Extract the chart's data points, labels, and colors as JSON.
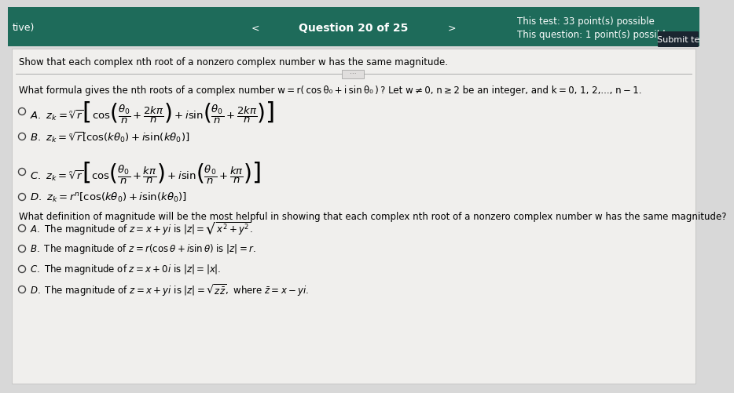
{
  "header_bg": "#1e6b5a",
  "header_text_color": "#ffffff",
  "header_left": "tive)",
  "header_center": "Question 20 of 25",
  "header_right_line1": "This test: 33 point(s) possible",
  "header_right_line2": "This question: 1 point(s) possible",
  "header_submit": "Submit te",
  "submit_bg": "#1a2530",
  "body_bg": "#d8d8d8",
  "content_bg": "#f0efed",
  "body_text_color": "#000000",
  "show_text": "Show that each complex nth root of a nonzero complex number w has the same magnitude.",
  "q1_intro": "What formula gives the nth roots of a complex number w = r( cos θ₀ + i sin θ₀ ) ? Let w ≠ 0, n ≥ 2 be an integer, and k = 0, 1, 2,..., n − 1.",
  "q2_intro": "What definition of magnitude will be the most helpful in showing that each complex nth root of a nonzero complex number w has the same magnitude?",
  "separator_color": "#aaaaaa",
  "radio_edge": "#444444",
  "font_size_header": 9.5,
  "font_size_body": 8.5,
  "font_size_math": 9.5
}
